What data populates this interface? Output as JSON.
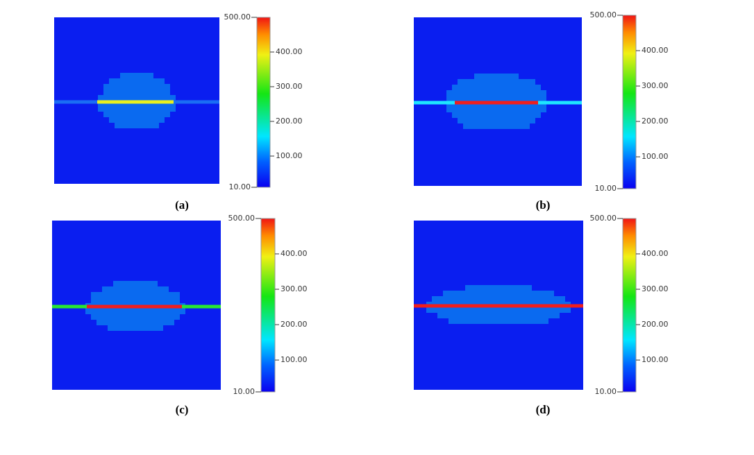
{
  "panels": [
    {
      "label": "(a)",
      "colorbar": {
        "ticks": [
          {
            "value": 10,
            "label": "10.00"
          },
          {
            "value": 100,
            "label": "100.00"
          },
          {
            "value": 200,
            "label": "200.00"
          },
          {
            "value": 300,
            "label": "300.00"
          },
          {
            "value": 400,
            "label": "400.00"
          },
          {
            "value": 500,
            "label": "500.00"
          }
        ]
      }
    },
    {
      "label": "(b)",
      "colorbar": {
        "ticks": [
          {
            "value": 10,
            "label": "10.00"
          },
          {
            "value": 100,
            "label": "100.00"
          },
          {
            "value": 200,
            "label": "200.00"
          },
          {
            "value": 300,
            "label": "300.00"
          },
          {
            "value": 400,
            "label": "400.00"
          },
          {
            "value": 500,
            "label": "500.00"
          }
        ]
      }
    },
    {
      "label": "(c)",
      "colorbar": {
        "ticks": [
          {
            "value": 10,
            "label": "10.00"
          },
          {
            "value": 100,
            "label": "100.00"
          },
          {
            "value": 200,
            "label": "200.00"
          },
          {
            "value": 300,
            "label": "300.00"
          },
          {
            "value": 400,
            "label": "400.00"
          },
          {
            "value": 500,
            "label": "500.00"
          }
        ]
      }
    },
    {
      "label": "(d)",
      "colorbar": {
        "ticks": [
          {
            "value": 10,
            "label": "10.00"
          },
          {
            "value": 100,
            "label": "100.00"
          },
          {
            "value": 200,
            "label": "200.00"
          },
          {
            "value": 300,
            "label": "300.00"
          },
          {
            "value": 400,
            "label": "400.00"
          },
          {
            "value": 500,
            "label": "500.00"
          }
        ]
      }
    }
  ]
}
